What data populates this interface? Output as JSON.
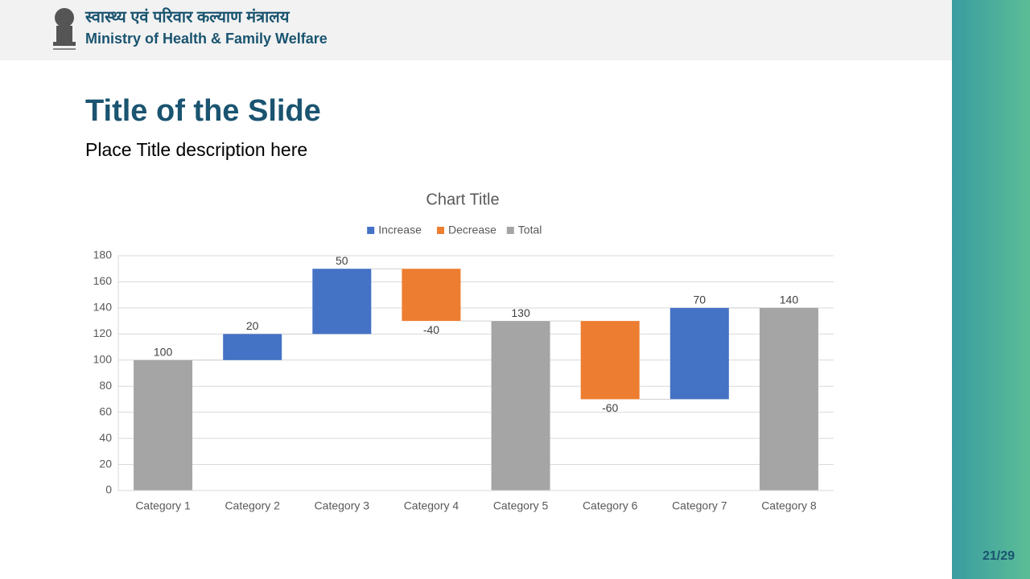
{
  "header": {
    "hindi": "स्वास्थ्य एवं परिवार कल्याण मंत्रालय",
    "ministry": "Ministry of Health & Family Welfare"
  },
  "slide": {
    "title": "Title of the Slide",
    "description": "Place Title description here",
    "page": "21/29"
  },
  "chart_data": {
    "type": "waterfall",
    "title": "Chart Title",
    "categories": [
      "Category 1",
      "Category 2",
      "Category 3",
      "Category 4",
      "Category 5",
      "Category 6",
      "Category 7",
      "Category 8"
    ],
    "series": [
      {
        "name": "Increase",
        "color": "#4472c4",
        "values": [
          null,
          20,
          50,
          null,
          null,
          null,
          70,
          null
        ]
      },
      {
        "name": "Decrease",
        "color": "#ed7d31",
        "values": [
          null,
          null,
          null,
          -40,
          null,
          -60,
          null,
          null
        ]
      },
      {
        "name": "Total",
        "color": "#a5a5a5",
        "values": [
          100,
          null,
          null,
          null,
          130,
          null,
          null,
          140
        ]
      }
    ],
    "ylim": [
      0,
      180
    ],
    "yticks": [
      0,
      20,
      40,
      60,
      80,
      100,
      120,
      140,
      160,
      180
    ],
    "grid": true,
    "legend": "top"
  }
}
